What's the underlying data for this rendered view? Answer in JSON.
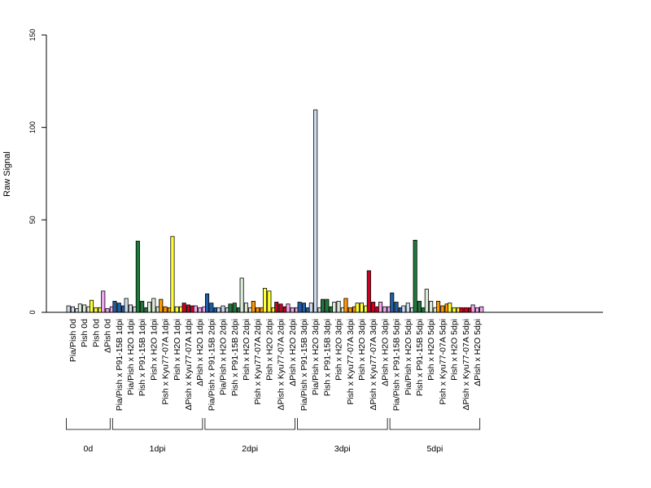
{
  "chart_data": {
    "type": "bar",
    "ylabel": "Raw Signal",
    "ylim": [
      0,
      150
    ],
    "yticks": [
      0,
      50,
      100,
      150
    ],
    "grid": false,
    "categories": [
      "Pia/Pish 0d",
      "Pish 0d",
      "Pish 0d",
      "ΔPish 0d",
      "Pia/Pish x P91-15B 1dpi",
      "Pia/Pish x H2O 1dpi",
      "Pish x P91-15B 1dpi",
      "Pish x H2O 1dpi",
      "Pish x Kyu77-07A 1dpi",
      "Pish x H2O 1dpi",
      "ΔPish x Kyu77-07A 1dpi",
      "ΔPish x H2O 1dpi",
      "Pia/Pish x P91-15B 2dpi",
      "Pia/Pish x H2O 2dpi",
      "Pish x P91-15B 2dpi",
      "Pish x H2O 2dpi",
      "Pish x Kyu77-07A 2dpi",
      "Pish x H2O 2dpi",
      "ΔPish x Kyu77-07A 2dpi",
      "ΔPish x H2O 2dpi",
      "Pia/Pish x P91-15B 3dpi",
      "Pia/Pish x H2O 3dpi",
      "Pish x P91-15B 3dpi",
      "Pish x H2O 3dpi",
      "Pish x Kyu77-07A 3dpi",
      "Pish x H2O 3dpi",
      "ΔPish x Kyu77-07A 3dpi",
      "ΔPish x H2O 3dpi",
      "Pia/Pish x P91-15B 5dpi",
      "Pia/Pish x H2O 5dpi",
      "Pish x P91-15B 5dpi",
      "Pish x H2O 5dpi",
      "Pish x Kyu77-07A 5dpi",
      "Pish x H2O 5dpi",
      "ΔPish x Kyu77-07A 5dpi",
      "ΔPish x H2O 5dpi"
    ],
    "colors": [
      "#cfdcec",
      "#dcebd8",
      "#ffff33",
      "#f0a8f0",
      "#1f5fa8",
      "#cfdcec",
      "#1f7a3a",
      "#dcebd8",
      "#ff9900",
      "#ffff33",
      "#cc0022",
      "#f0a8f0",
      "#1f5fa8",
      "#cfdcec",
      "#1f7a3a",
      "#dcebd8",
      "#ff9900",
      "#ffff33",
      "#cc0022",
      "#f0a8f0",
      "#1f5fa8",
      "#cfdcec",
      "#1f7a3a",
      "#dcebd8",
      "#ff9900",
      "#ffff33",
      "#cc0022",
      "#f0a8f0",
      "#1f5fa8",
      "#cfdcec",
      "#1f7a3a",
      "#dcebd8",
      "#ff9900",
      "#ffff33",
      "#cc0022",
      "#f0a8f0"
    ],
    "values": [
      [
        3.5,
        3,
        2
      ],
      [
        4.5,
        4,
        3
      ],
      [
        6.5,
        2.5,
        2.5
      ],
      [
        11.5,
        2,
        3
      ],
      [
        6,
        5,
        3.5
      ],
      [
        7.5,
        4,
        3
      ],
      [
        38.5,
        6,
        2.5
      ],
      [
        5.5,
        7.5,
        3
      ],
      [
        7,
        3,
        2.5
      ],
      [
        41,
        3,
        3
      ],
      [
        5,
        4,
        3.5
      ],
      [
        3.5,
        2.5,
        3
      ],
      [
        10,
        5,
        2.5
      ],
      [
        2.5,
        3.5,
        2.5
      ],
      [
        4.5,
        5,
        2.5
      ],
      [
        18.5,
        5,
        2.5
      ],
      [
        6,
        2.5,
        2.5
      ],
      [
        13,
        11.5,
        2.5
      ],
      [
        5.5,
        4.5,
        3
      ],
      [
        4.5,
        2.5,
        2.5
      ],
      [
        5.5,
        5,
        2.5
      ],
      [
        5,
        109.5,
        2.5
      ],
      [
        7,
        7,
        3
      ],
      [
        5.5,
        6,
        2.5
      ],
      [
        7.5,
        2.5,
        3
      ],
      [
        5,
        5,
        3.5
      ],
      [
        22.5,
        5.5,
        3
      ],
      [
        5.5,
        3,
        3
      ],
      [
        10.5,
        5.5,
        2.5
      ],
      [
        3.5,
        5,
        2.5
      ],
      [
        39,
        6,
        2.5
      ],
      [
        12.5,
        6,
        2.5
      ],
      [
        6,
        3.5,
        4.5
      ],
      [
        5,
        2.5,
        2.5
      ],
      [
        2.5,
        2.5,
        2.5
      ],
      [
        4,
        2.5,
        3
      ]
    ],
    "groups": [
      {
        "label": "0d",
        "count": 4
      },
      {
        "label": "1dpi",
        "count": 8
      },
      {
        "label": "2dpi",
        "count": 8
      },
      {
        "label": "3dpi",
        "count": 8
      },
      {
        "label": "5dpi",
        "count": 8
      }
    ]
  }
}
